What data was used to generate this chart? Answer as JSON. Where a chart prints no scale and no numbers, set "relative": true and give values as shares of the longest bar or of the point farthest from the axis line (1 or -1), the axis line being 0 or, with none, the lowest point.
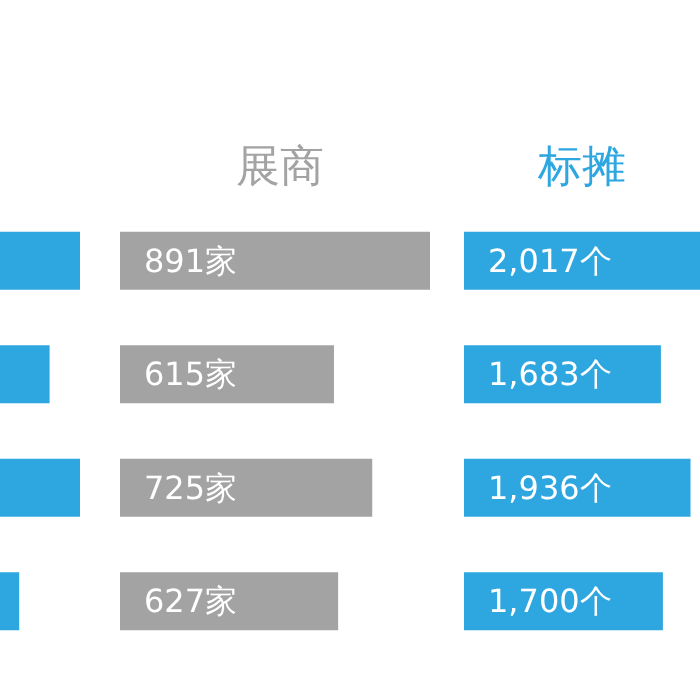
{
  "chart_data": [
    {
      "type": "bar",
      "orientation": "horizontal",
      "relative": true,
      "categories": [
        null,
        null,
        null,
        null
      ],
      "values": [
        1,
        0.62,
        1,
        0.24
      ],
      "color": "#2ea7e0"
    },
    {
      "type": "bar",
      "orientation": "horizontal",
      "tick_labels": false,
      "title": "展商",
      "categories": [
        null,
        null,
        null,
        null
      ],
      "values": [
        891,
        615,
        725,
        627
      ],
      "value_labels": [
        "891家",
        "615家",
        "725家",
        "627家"
      ],
      "color": "#a3a3a3"
    },
    {
      "type": "bar",
      "orientation": "horizontal",
      "tick_labels": false,
      "title": "标摊",
      "categories": [
        null,
        null,
        null,
        null
      ],
      "values": [
        2017,
        1683,
        1936,
        1700
      ],
      "value_labels": [
        "2,017个",
        "1,683个",
        "1,936个",
        "1,700个"
      ],
      "color": "#2ea7e0"
    }
  ]
}
